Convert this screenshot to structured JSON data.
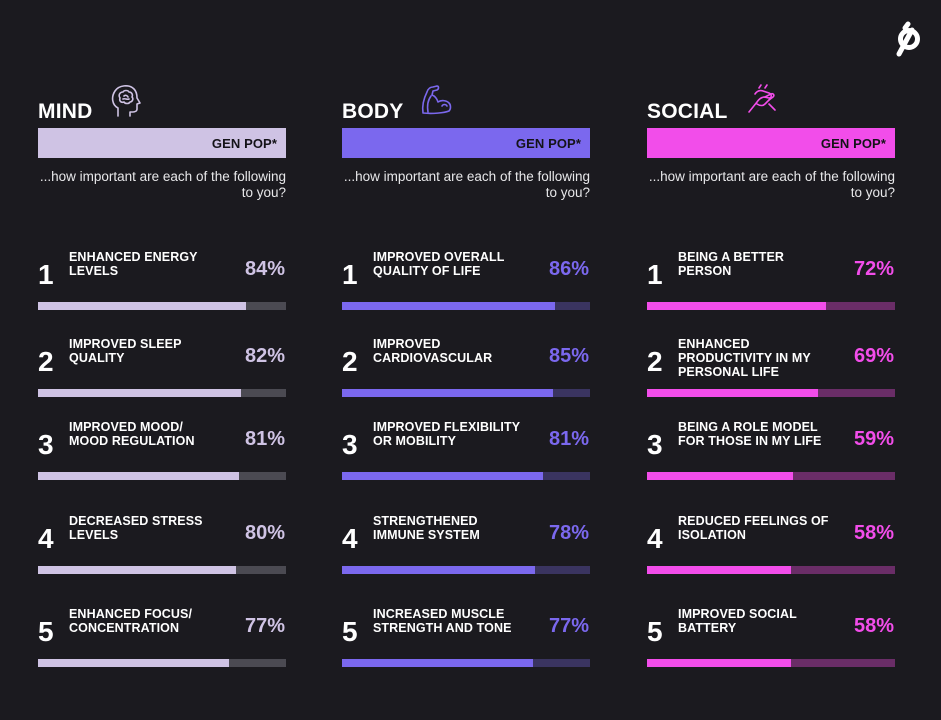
{
  "colors": {
    "background": "#1b1a1f",
    "mind": "#cfc3e4",
    "mind_track": "#4b4a52",
    "body": "#7b68ee",
    "body_track": "#3a3460",
    "social": "#f24dea",
    "social_track": "#6a2d67"
  },
  "icons": {
    "logo": "peloton-logo",
    "mind": "brain-head-icon",
    "body": "flexed-arm-icon",
    "social": "handshake-icon"
  },
  "chart_data": [
    {
      "type": "bar",
      "title": "MIND",
      "subtitle": "GEN POP*",
      "question": "...how important are each of the following to you?",
      "ylim": [
        0,
        100
      ],
      "categories": [
        "ENHANCED ENERGY LEVELS",
        "IMPROVED SLEEP QUALITY",
        "IMPROVED MOOD/ MOOD REGULATION",
        "DECREASED STRESS LEVELS",
        "ENHANCED FOCUS/ CONCENTRATION"
      ],
      "ranks": [
        "1",
        "2",
        "3",
        "4",
        "5"
      ],
      "values": [
        84,
        82,
        81,
        80,
        77
      ],
      "value_labels": [
        "84%",
        "82%",
        "81%",
        "80%",
        "77%"
      ]
    },
    {
      "type": "bar",
      "title": "BODY",
      "subtitle": "GEN POP*",
      "question": "...how important are each of the following to you?",
      "ylim": [
        0,
        100
      ],
      "categories": [
        "IMPROVED OVERALL QUALITY OF LIFE",
        "IMPROVED CARDIOVASCULAR",
        "IMPROVED FLEXIBILITY OR MOBILITY",
        "STRENGTHENED IMMUNE SYSTEM",
        "INCREASED MUSCLE STRENGTH AND TONE"
      ],
      "ranks": [
        "1",
        "2",
        "3",
        "4",
        "5"
      ],
      "values": [
        86,
        85,
        81,
        78,
        77
      ],
      "value_labels": [
        "86%",
        "85%",
        "81%",
        "78%",
        "77%"
      ]
    },
    {
      "type": "bar",
      "title": "SOCIAL",
      "subtitle": "GEN POP*",
      "question": "...how important are each of the following to you?",
      "ylim": [
        0,
        100
      ],
      "categories": [
        "BEING A BETTER PERSON",
        "ENHANCED PRODUCTIVITY IN MY PERSONAL LIFE",
        "BEING A ROLE MODEL FOR THOSE IN MY LIFE",
        "REDUCED FEELINGS OF ISOLATION",
        "IMPROVED SOCIAL BATTERY"
      ],
      "ranks": [
        "1",
        "2",
        "3",
        "4",
        "5"
      ],
      "values": [
        72,
        69,
        59,
        58,
        58
      ],
      "value_labels": [
        "72%",
        "69%",
        "59%",
        "58%",
        "58%"
      ]
    }
  ]
}
